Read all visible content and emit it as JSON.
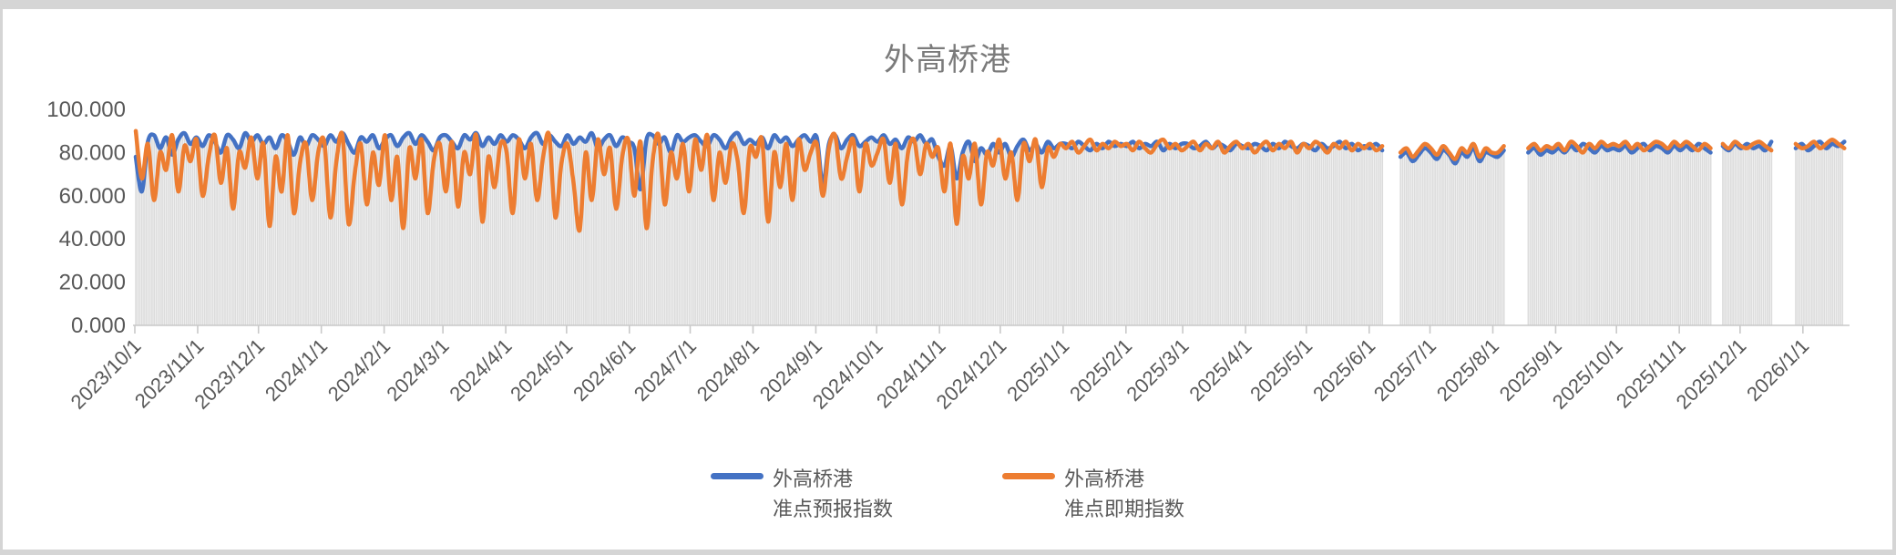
{
  "title": {
    "text": "外高桥港",
    "color": "#7b7b7b"
  },
  "legend": {
    "items": [
      {
        "label_line1": "外高桥港",
        "label_line2": "准点预报指数",
        "color": "#4472C4"
      },
      {
        "label_line1": "外高桥港",
        "label_line2": "准点即期指数",
        "color": "#ED7D31"
      }
    ]
  },
  "chart_data": {
    "type": "line",
    "title": "外高桥港",
    "start_date": "2023-10-01",
    "step_days": 3,
    "ylim": [
      0,
      100
    ],
    "y_ticks": [
      "0.000",
      "20.000",
      "40.000",
      "60.000",
      "80.000",
      "100.000"
    ],
    "x_ticks": [
      "2023/10/1",
      "2023/11/1",
      "2023/12/1",
      "2024/1/1",
      "2024/2/1",
      "2024/3/1",
      "2024/4/1",
      "2024/5/1",
      "2024/6/1",
      "2024/7/1",
      "2024/8/1",
      "2024/9/1",
      "2024/10/1",
      "2024/11/1",
      "2024/12/1",
      "2025/1/1",
      "2025/2/1",
      "2025/3/1",
      "2025/4/1",
      "2025/5/1",
      "2025/6/1",
      "2025/7/1",
      "2025/8/1",
      "2025/9/1",
      "2025/10/1",
      "2025/11/1",
      "2025/12/1",
      "2026/1/1"
    ],
    "grid": false,
    "legend_position": "bottom",
    "background_bars": {
      "color": "#dcdcdc",
      "derive": "max_of_series"
    },
    "axis_color": "#c9c9c9",
    "tick_label_color": "#595959",
    "series": [
      {
        "name": "外高桥港 准点预报指数",
        "color": "#4472C4",
        "values": [
          78,
          62,
          85,
          88,
          82,
          87,
          79,
          86,
          89,
          84,
          87,
          83,
          88,
          85,
          80,
          88,
          86,
          82,
          89,
          85,
          88,
          84,
          87,
          82,
          88,
          85,
          79,
          87,
          83,
          88,
          86,
          83,
          88,
          85,
          89,
          84,
          80,
          87,
          85,
          88,
          82,
          86,
          88,
          83,
          87,
          89,
          84,
          88,
          85,
          81,
          87,
          88,
          85,
          82,
          88,
          86,
          89,
          83,
          87,
          84,
          88,
          85,
          88,
          86,
          82,
          87,
          89,
          84,
          88,
          85,
          83,
          88,
          84,
          87,
          85,
          89,
          82,
          86,
          88,
          83,
          87,
          85,
          82,
          63,
          86,
          88,
          84,
          87,
          80,
          88,
          85,
          87,
          88,
          85,
          83,
          88,
          86,
          82,
          87,
          89,
          84,
          86,
          84,
          87,
          82,
          88,
          85,
          87,
          83,
          86,
          88,
          85,
          87,
          65,
          84,
          88,
          82,
          86,
          88,
          83,
          85,
          87,
          85,
          88,
          84,
          86,
          82,
          87,
          85,
          88,
          84,
          86,
          78,
          74,
          83,
          68,
          80,
          85,
          76,
          82,
          79,
          84,
          80,
          84,
          78,
          83,
          86,
          81,
          84,
          80,
          85,
          82,
          84,
          84,
          82,
          85,
          83,
          81,
          84,
          82,
          85,
          83,
          84,
          83,
          85,
          82,
          84,
          83,
          85,
          81,
          84,
          82,
          84,
          84,
          82,
          83,
          85,
          82,
          84,
          83,
          81,
          84,
          83,
          82,
          84,
          83,
          81,
          84,
          82,
          85,
          83,
          82,
          84,
          83,
          81,
          84,
          82,
          83,
          85,
          82,
          84,
          81,
          83,
          82,
          84,
          81,
          null,
          null,
          78,
          80,
          76,
          79,
          82,
          80,
          77,
          81,
          79,
          75,
          80,
          78,
          82,
          76,
          80,
          79,
          78,
          81,
          null,
          null,
          null,
          80,
          82,
          79,
          81,
          80,
          82,
          80,
          83,
          81,
          84,
          82,
          80,
          83,
          81,
          82,
          81,
          83,
          80,
          82,
          84,
          81,
          83,
          82,
          80,
          83,
          81,
          83,
          81,
          84,
          82,
          80,
          null,
          83,
          81,
          84,
          82,
          84,
          82,
          83,
          81,
          85,
          null,
          null,
          null,
          82,
          84,
          81,
          83,
          85,
          82,
          84,
          83,
          85
        ]
      },
      {
        "name": "外高桥港 准点即期指数",
        "color": "#ED7D31",
        "values": [
          90,
          68,
          84,
          58,
          80,
          72,
          88,
          62,
          83,
          76,
          86,
          60,
          78,
          88,
          66,
          82,
          54,
          80,
          73,
          87,
          68,
          84,
          46,
          78,
          62,
          88,
          52,
          75,
          84,
          58,
          80,
          85,
          50,
          76,
          88,
          47,
          70,
          84,
          56,
          80,
          65,
          88,
          58,
          78,
          45,
          82,
          68,
          86,
          52,
          76,
          84,
          62,
          85,
          55,
          80,
          70,
          88,
          48,
          78,
          64,
          84,
          80,
          52,
          86,
          68,
          84,
          58,
          78,
          88,
          50,
          75,
          84,
          66,
          44,
          80,
          58,
          86,
          70,
          82,
          54,
          78,
          86,
          60,
          85,
          45,
          76,
          88,
          56,
          80,
          68,
          84,
          62,
          86,
          72,
          88,
          58,
          80,
          66,
          84,
          76,
          52,
          82,
          78,
          86,
          48,
          80,
          64,
          84,
          58,
          86,
          72,
          80,
          84,
          60,
          82,
          88,
          68,
          78,
          86,
          62,
          84,
          74,
          80,
          86,
          66,
          84,
          56,
          80,
          86,
          70,
          84,
          78,
          82,
          62,
          84,
          47,
          78,
          68,
          84,
          56,
          80,
          74,
          86,
          68,
          80,
          58,
          84,
          76,
          86,
          64,
          82,
          78,
          84,
          82,
          85,
          80,
          83,
          86,
          81,
          84,
          82,
          85,
          83,
          84,
          81,
          85,
          82,
          80,
          84,
          86,
          82,
          84,
          81,
          83,
          85,
          81,
          84,
          82,
          85,
          80,
          83,
          85,
          82,
          84,
          80,
          83,
          85,
          81,
          84,
          82,
          85,
          80,
          84,
          82,
          85,
          83,
          80,
          84,
          82,
          85,
          81,
          84,
          82,
          84,
          81,
          83,
          null,
          null,
          80,
          82,
          78,
          81,
          84,
          82,
          79,
          83,
          80,
          77,
          82,
          80,
          84,
          78,
          82,
          80,
          80,
          83,
          null,
          null,
          null,
          82,
          84,
          81,
          83,
          82,
          84,
          81,
          85,
          83,
          80,
          84,
          82,
          85,
          83,
          84,
          83,
          85,
          82,
          84,
          81,
          83,
          85,
          84,
          82,
          85,
          83,
          85,
          83,
          81,
          84,
          82,
          null,
          84,
          82,
          85,
          83,
          82,
          84,
          85,
          83,
          81,
          null,
          null,
          null,
          84,
          82,
          83,
          85,
          82,
          84,
          86,
          84,
          82
        ]
      }
    ]
  }
}
